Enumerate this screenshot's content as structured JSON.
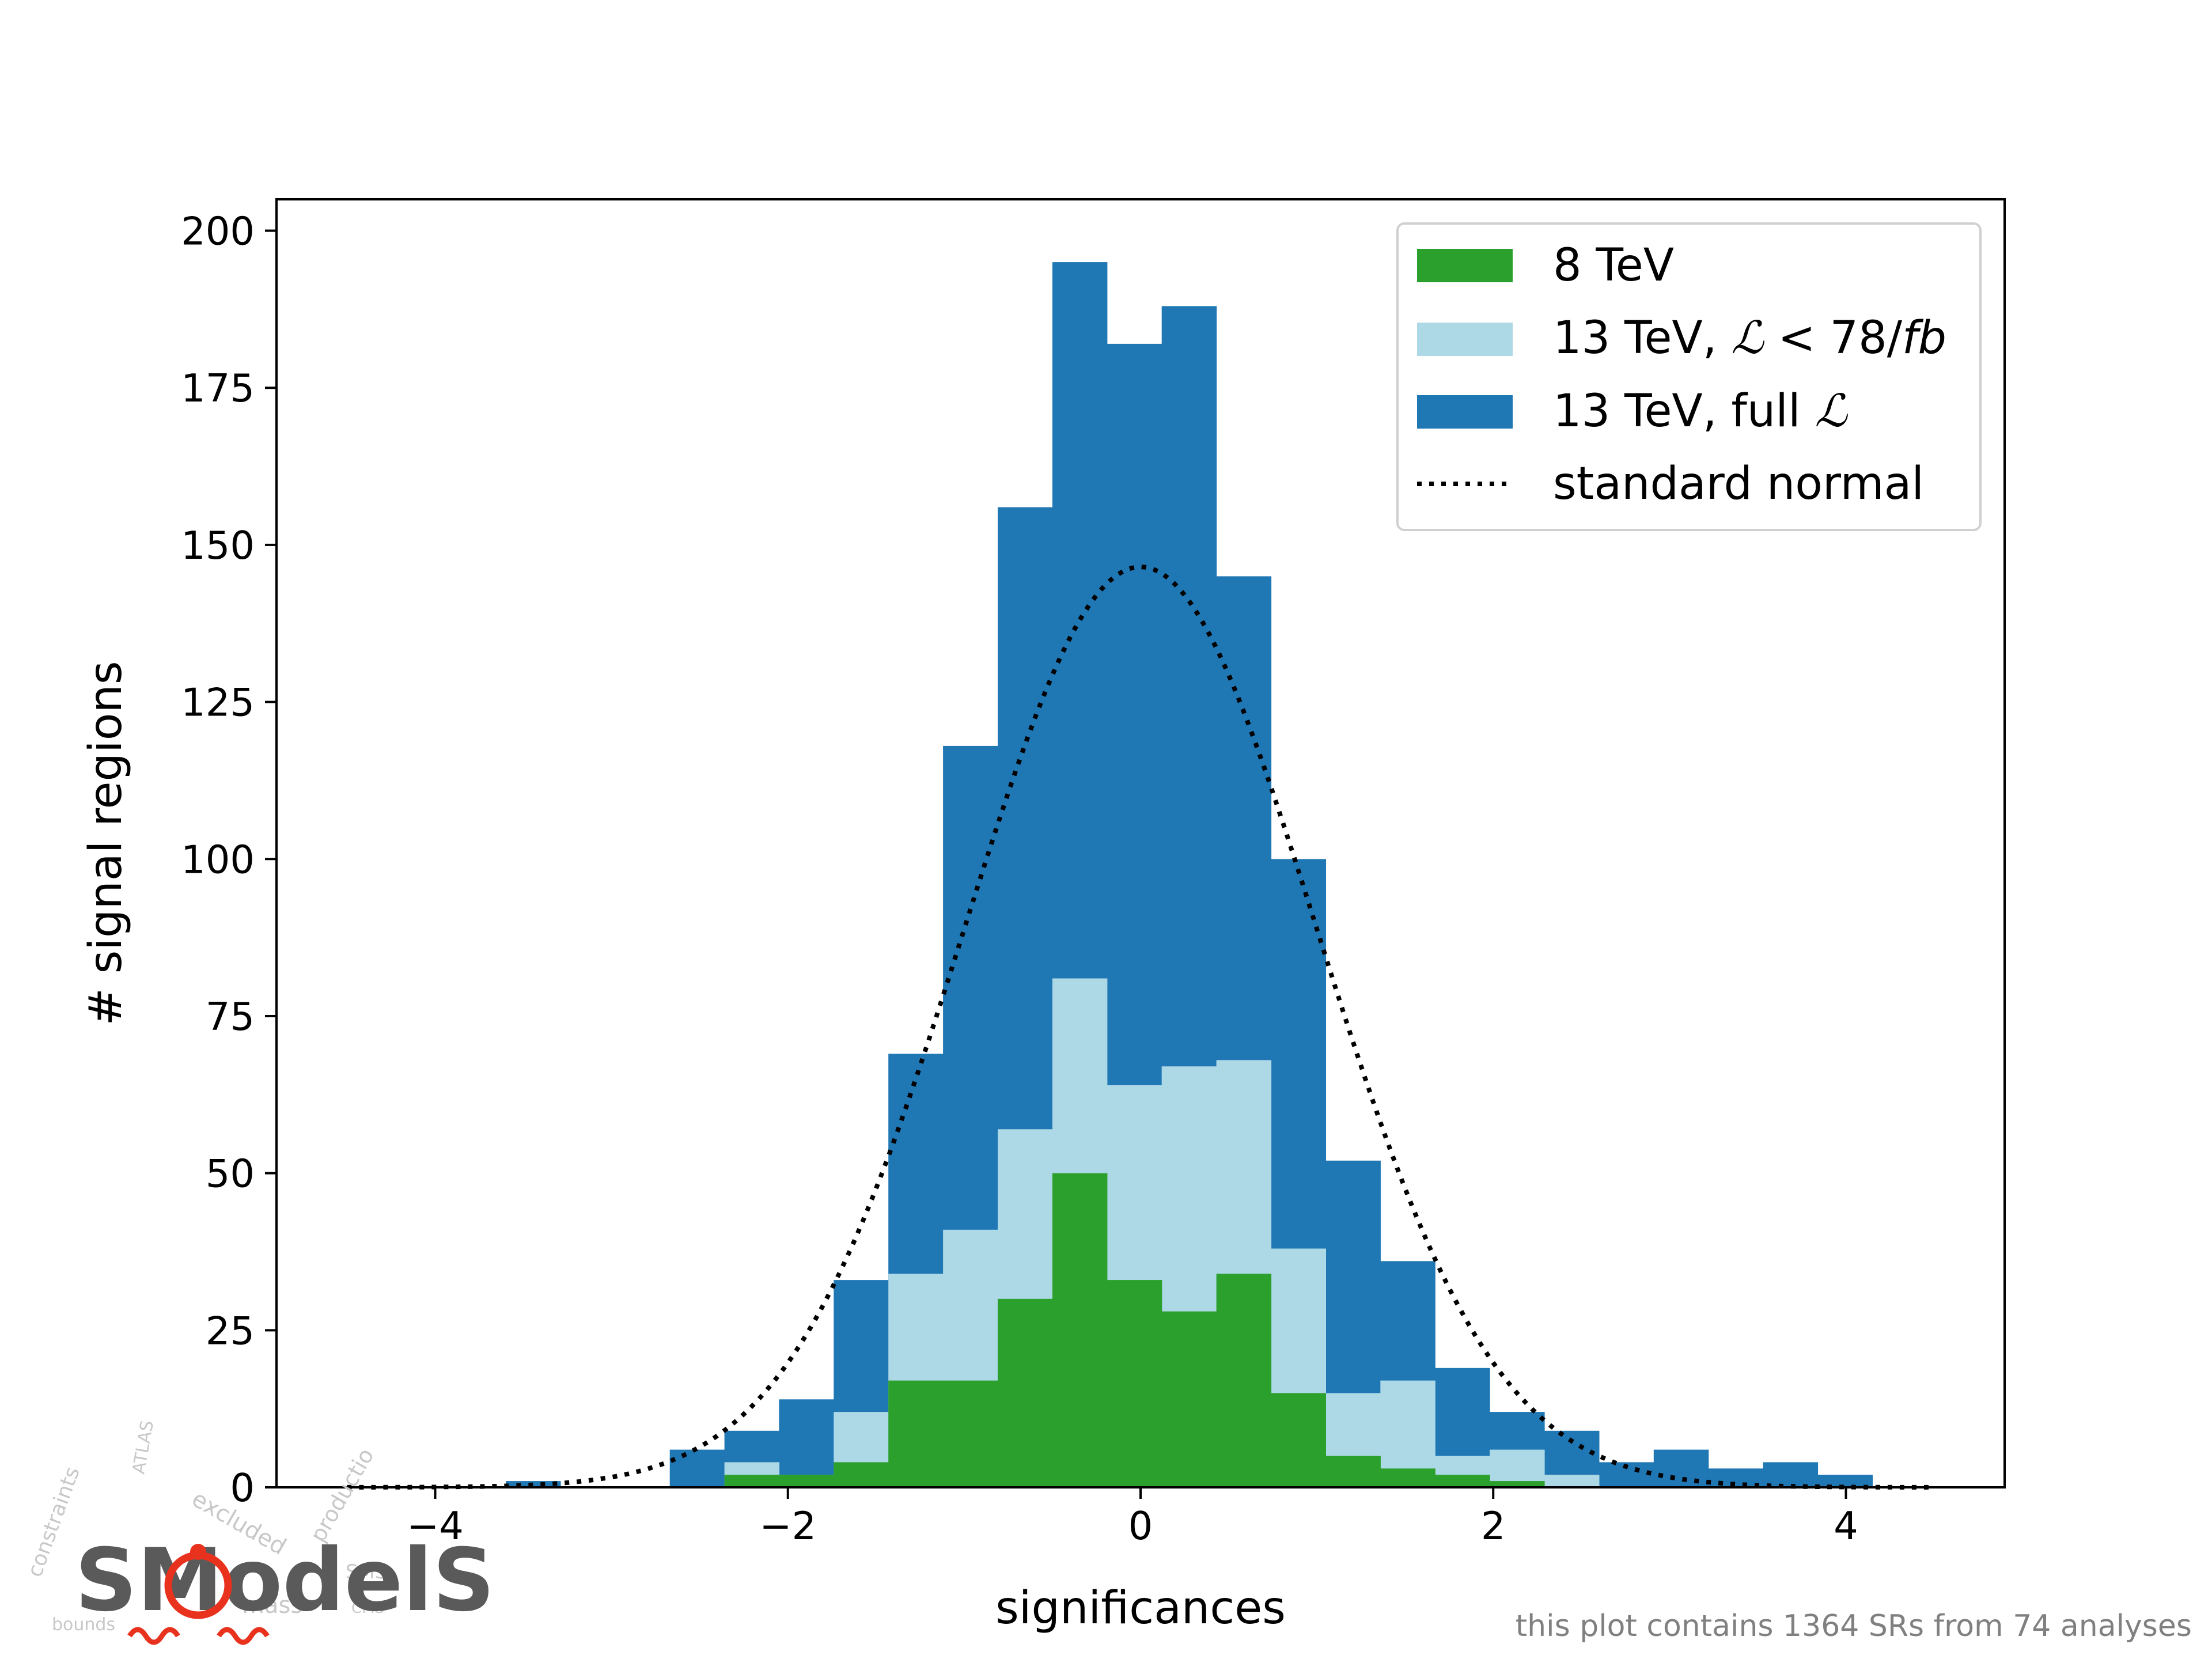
{
  "chart_data": {
    "type": "bar",
    "subtype": "stacked-histogram",
    "xlabel": "significances",
    "ylabel": "# signal regions",
    "xlim": [
      -4.9,
      4.9
    ],
    "ylim": [
      0,
      205
    ],
    "xticks": [
      -4,
      -2,
      0,
      2,
      4
    ],
    "xtick_labels": [
      "−4",
      "−2",
      "0",
      "2",
      "4"
    ],
    "yticks": [
      0,
      25,
      50,
      75,
      100,
      125,
      150,
      175,
      200
    ],
    "ytick_labels": [
      "0",
      "25",
      "50",
      "75",
      "100",
      "125",
      "150",
      "175",
      "200"
    ],
    "grid": false,
    "legend_position": "upper right",
    "bin_edges": [
      -3.6,
      -3.29,
      -2.98,
      -2.67,
      -2.36,
      -2.05,
      -1.74,
      -1.43,
      -1.12,
      -0.81,
      -0.5,
      -0.19,
      0.12,
      0.43,
      0.74,
      1.05,
      1.36,
      1.67,
      1.98,
      2.29,
      2.6,
      2.91,
      3.22,
      3.53,
      3.84,
      4.15
    ],
    "series": [
      {
        "name": "8 TeV",
        "color": "#2ca02c",
        "values": [
          0,
          0,
          0,
          0,
          2,
          2,
          4,
          17,
          17,
          30,
          50,
          33,
          28,
          34,
          15,
          5,
          3,
          2,
          1,
          0,
          0,
          0,
          0,
          0,
          0
        ]
      },
      {
        "name": "13 TeV, ℒ < 78/fb",
        "color": "#add8e6",
        "values": [
          0,
          0,
          0,
          0,
          4,
          2,
          12,
          34,
          41,
          57,
          81,
          64,
          67,
          68,
          38,
          15,
          17,
          5,
          6,
          2,
          0,
          0,
          0,
          0,
          0
        ]
      },
      {
        "name": "13 TeV, full ℒ",
        "color": "#1f77b4",
        "values": [
          1,
          0,
          0,
          6,
          9,
          14,
          33,
          69,
          118,
          156,
          195,
          182,
          188,
          145,
          100,
          52,
          36,
          19,
          12,
          9,
          4,
          6,
          3,
          4,
          2
        ]
      }
    ],
    "reference_curve": {
      "name": "standard normal",
      "color": "#000000",
      "style": "dotted",
      "x_range": [
        -4.5,
        4.5
      ],
      "peak": 146.5
    },
    "annotation": "this plot contains 1364 SRs from 74 analyses"
  },
  "legend": {
    "items": [
      {
        "label": "8 TeV",
        "color": "#2ca02c"
      },
      {
        "label": "13 TeV, ",
        "math": "ℒ",
        "rest": " < 78/",
        "italic": "fb",
        "color": "#add8e6"
      },
      {
        "label": "13 TeV, full ",
        "math": "ℒ",
        "color": "#1f77b4"
      },
      {
        "label": "standard normal",
        "color": "#000000"
      }
    ]
  },
  "logo": {
    "text": "SModelS"
  }
}
